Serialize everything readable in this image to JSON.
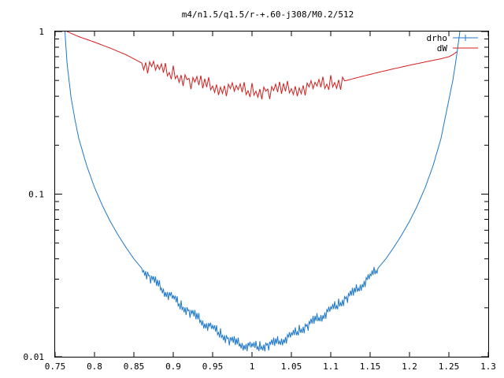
{
  "chart_data": {
    "type": "line",
    "title": "m4/n1.5/q1.5/r-+.60-j308/M0.2/512",
    "xlabel": "",
    "ylabel": "",
    "xlim": [
      0.75,
      1.3
    ],
    "ylim": [
      0.01,
      1
    ],
    "yscale": "log",
    "grid": false,
    "legend_position": "top-right",
    "x_ticks": [
      "0.75",
      "0.8",
      "0.85",
      "0.9",
      "0.95",
      "1",
      "1.05",
      "1.1",
      "1.15",
      "1.2",
      "1.25",
      "1.3"
    ],
    "y_ticks": [
      "0.01",
      "0.1",
      "1"
    ],
    "series": [
      {
        "name": "drho",
        "color": "#1f78c8",
        "x": [
          0.7625,
          0.765,
          0.77,
          0.775,
          0.78,
          0.79,
          0.8,
          0.81,
          0.82,
          0.83,
          0.84,
          0.85,
          0.86,
          0.87,
          0.88,
          0.89,
          0.9,
          0.91,
          0.92,
          0.93,
          0.94,
          0.95,
          0.96,
          0.97,
          0.98,
          0.99,
          1.0,
          1.01,
          1.02,
          1.03,
          1.04,
          1.05,
          1.06,
          1.07,
          1.08,
          1.09,
          1.1,
          1.11,
          1.12,
          1.13,
          1.14,
          1.15,
          1.16,
          1.17,
          1.18,
          1.19,
          1.2,
          1.21,
          1.22,
          1.23,
          1.24,
          1.245,
          1.25,
          1.255,
          1.258,
          1.26,
          1.262,
          1.264
        ],
        "y": [
          1.0,
          0.65,
          0.4,
          0.29,
          0.22,
          0.15,
          0.11,
          0.085,
          0.068,
          0.056,
          0.047,
          0.04,
          0.035,
          0.031,
          0.028,
          0.025,
          0.023,
          0.0205,
          0.019,
          0.0175,
          0.016,
          0.015,
          0.0138,
          0.0128,
          0.0122,
          0.0118,
          0.0116,
          0.0115,
          0.0118,
          0.0122,
          0.0128,
          0.0135,
          0.0145,
          0.0155,
          0.0168,
          0.018,
          0.0195,
          0.021,
          0.023,
          0.025,
          0.028,
          0.031,
          0.035,
          0.04,
          0.047,
          0.056,
          0.068,
          0.085,
          0.11,
          0.15,
          0.22,
          0.29,
          0.38,
          0.5,
          0.62,
          0.72,
          0.85,
          1.0
        ]
      },
      {
        "name": "dW",
        "color": "#d41e1e",
        "x": [
          0.765,
          0.78,
          0.8,
          0.82,
          0.84,
          0.86,
          0.88,
          0.9,
          0.92,
          0.94,
          0.96,
          0.98,
          1.0,
          1.02,
          1.04,
          1.06,
          1.08,
          1.1,
          1.12,
          1.14,
          1.16,
          1.18,
          1.2,
          1.22,
          1.24,
          1.25,
          1.255,
          1.26
        ],
        "y": [
          1.0,
          0.93,
          0.86,
          0.79,
          0.72,
          0.64,
          0.59,
          0.55,
          0.5,
          0.47,
          0.455,
          0.44,
          0.43,
          0.43,
          0.44,
          0.45,
          0.46,
          0.48,
          0.5,
          0.53,
          0.56,
          0.59,
          0.62,
          0.65,
          0.68,
          0.7,
          0.72,
          0.75
        ]
      }
    ]
  }
}
